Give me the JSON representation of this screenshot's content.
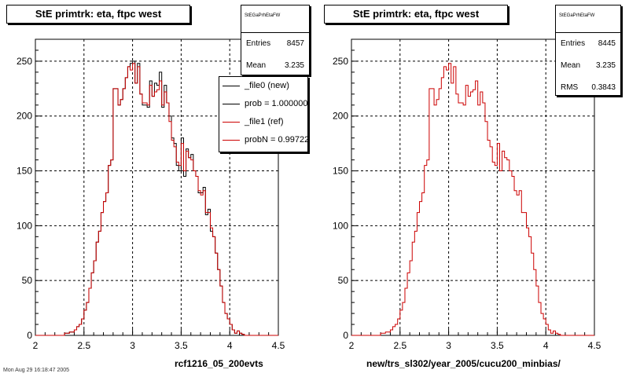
{
  "panels": [
    {
      "title": "StE primtrk: eta, ftpc west",
      "stats": {
        "header": "StEGaPrhEtaFW",
        "rows": [
          {
            "k": "Entries",
            "v": "8457"
          },
          {
            "k": "Mean",
            "v": "3.235"
          }
        ]
      },
      "xlabel": "rcf1216_05_200evts",
      "legend": [
        {
          "label": "_file0 (new)",
          "color": "#000000"
        },
        {
          "label": "prob = 1.000000",
          "color": "#000000"
        },
        {
          "label": "_file1 (ref)",
          "color": "#cc0000"
        },
        {
          "label": "probN = 0.99722",
          "color": "#cc0000"
        }
      ]
    },
    {
      "title": "StE primtrk: eta, ftpc west",
      "stats": {
        "header": "StEGaPrhEtaFW",
        "rows": [
          {
            "k": "Entries",
            "v": "8445"
          },
          {
            "k": "Mean",
            "v": "3.235"
          },
          {
            "k": "RMS",
            "v": "0.3843"
          }
        ]
      },
      "xlabel": "new/trs_sl302/year_2005/cucu200_minbias/",
      "legend": []
    }
  ],
  "footer": "Mon Aug 29 16:18:47 2005",
  "chart_data": [
    {
      "type": "histogram",
      "title": "StE primtrk: eta, ftpc west",
      "xlabel": "rcf1216_05_200evts",
      "xlim": [
        2,
        4.5
      ],
      "ylim": [
        0,
        270
      ],
      "xticks": [
        "2",
        "2.5",
        "3",
        "3.5",
        "4",
        "4.5"
      ],
      "yticks": [
        "0",
        "50",
        "100",
        "150",
        "200",
        "250"
      ],
      "grid": true,
      "legend_position": "top-right",
      "bin_start": 2.0,
      "bin_width": 0.025,
      "series": [
        {
          "name": "_file0 (new)",
          "color": "#000000",
          "values": [
            0,
            0,
            0,
            0,
            0,
            0,
            0,
            0,
            0,
            0,
            0,
            0,
            2,
            2,
            3,
            3,
            5,
            8,
            10,
            15,
            23,
            30,
            43,
            57,
            68,
            85,
            95,
            112,
            122,
            130,
            155,
            160,
            225,
            225,
            210,
            215,
            225,
            235,
            245,
            248,
            250,
            230,
            248,
            220,
            210,
            210,
            208,
            232,
            218,
            230,
            228,
            240,
            208,
            228,
            212,
            200,
            180,
            175,
            155,
            150,
            180,
            145,
            170,
            162,
            165,
            150,
            145,
            130,
            130,
            135,
            110,
            115,
            95,
            90,
            75,
            60,
            45,
            30,
            20,
            15,
            10,
            5,
            2,
            4,
            2,
            1,
            0,
            0,
            0,
            0,
            0,
            0,
            0,
            0,
            0,
            0,
            0,
            0,
            0,
            0
          ]
        },
        {
          "name": "_file1 (ref)",
          "color": "#cc0000",
          "values": [
            0,
            0,
            0,
            0,
            0,
            0,
            0,
            0,
            0,
            0,
            0,
            0,
            2,
            2,
            3,
            3,
            5,
            8,
            10,
            15,
            23,
            30,
            43,
            57,
            68,
            85,
            95,
            112,
            122,
            130,
            155,
            160,
            225,
            225,
            210,
            215,
            225,
            235,
            245,
            242,
            248,
            230,
            245,
            220,
            212,
            212,
            210,
            228,
            218,
            222,
            224,
            232,
            210,
            222,
            212,
            195,
            178,
            172,
            158,
            155,
            175,
            150,
            168,
            162,
            160,
            150,
            145,
            132,
            128,
            132,
            112,
            112,
            98,
            90,
            75,
            60,
            45,
            30,
            20,
            15,
            10,
            5,
            2,
            4,
            2,
            1,
            0,
            0,
            0,
            0,
            0,
            0,
            0,
            0,
            0,
            0,
            0,
            0,
            0,
            0
          ]
        }
      ]
    },
    {
      "type": "histogram",
      "title": "StE primtrk: eta, ftpc west",
      "xlabel": "new/trs_sl302/year_2005/cucu200_minbias/",
      "xlim": [
        2,
        4.5
      ],
      "ylim": [
        0,
        270
      ],
      "xticks": [
        "2",
        "2.5",
        "3",
        "3.5",
        "4",
        "4.5"
      ],
      "yticks": [
        "0",
        "50",
        "100",
        "150",
        "200",
        "250"
      ],
      "grid": true,
      "bin_start": 2.0,
      "bin_width": 0.025,
      "series": [
        {
          "name": "",
          "color": "#cc0000",
          "values": [
            0,
            0,
            0,
            0,
            0,
            0,
            0,
            0,
            0,
            0,
            0,
            0,
            2,
            2,
            3,
            3,
            5,
            8,
            10,
            15,
            23,
            30,
            43,
            57,
            68,
            85,
            95,
            112,
            122,
            130,
            155,
            160,
            225,
            225,
            210,
            215,
            225,
            235,
            245,
            242,
            248,
            230,
            245,
            220,
            212,
            212,
            210,
            228,
            218,
            222,
            224,
            232,
            210,
            222,
            212,
            195,
            178,
            172,
            158,
            155,
            175,
            150,
            168,
            162,
            160,
            150,
            145,
            132,
            128,
            132,
            112,
            112,
            98,
            90,
            75,
            60,
            45,
            30,
            20,
            15,
            10,
            5,
            2,
            4,
            2,
            1,
            0,
            0,
            0,
            0,
            0,
            0,
            0,
            0,
            0,
            0,
            0,
            0,
            0,
            0
          ]
        }
      ]
    }
  ]
}
